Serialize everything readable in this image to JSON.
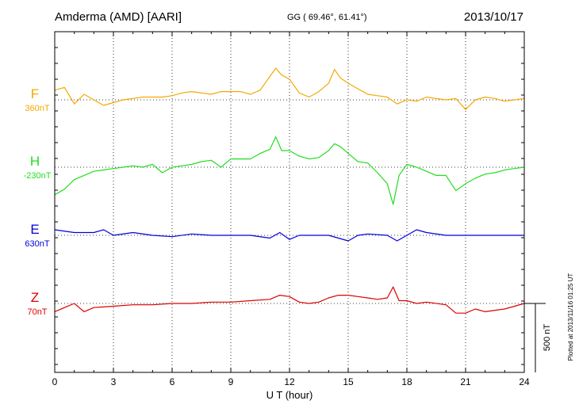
{
  "header": {
    "station": "Amderma (AMD)  [AARI]",
    "coords": "GG ( 69.46°,  61.41°)",
    "date": "2013/10/17"
  },
  "footer_note": "Plotted at 2013/11/16 01:25 UT",
  "scale_label": "500 nT",
  "chart_data": {
    "type": "line",
    "xlabel": "U T (hour)",
    "xlim": [
      0,
      24
    ],
    "x_ticks": [
      0,
      3,
      6,
      9,
      12,
      15,
      18,
      21,
      24
    ],
    "x_tick_labels": [
      "0",
      "3",
      "6",
      "9",
      "12",
      "15",
      "18",
      "21",
      "24"
    ],
    "scale_bar_nT": 500,
    "series": [
      {
        "name": "F",
        "baseline_label": "360nT",
        "color": "#f5a800",
        "x": [
          0,
          0.5,
          1,
          1.5,
          2,
          2.5,
          3,
          3.5,
          4,
          4.5,
          5,
          5.5,
          6,
          6.5,
          7,
          7.5,
          8,
          8.5,
          9,
          9.5,
          10,
          10.5,
          11,
          11.3,
          11.6,
          12,
          12.5,
          13,
          13.5,
          14,
          14.3,
          14.6,
          15,
          15.5,
          16,
          16.5,
          17,
          17.5,
          18,
          18.5,
          19,
          19.5,
          20,
          20.5,
          21,
          21.5,
          22,
          22.5,
          23,
          23.5,
          24
        ],
        "y": [
          70,
          90,
          -30,
          40,
          0,
          -40,
          -20,
          0,
          10,
          20,
          20,
          20,
          30,
          50,
          60,
          50,
          40,
          60,
          60,
          60,
          40,
          70,
          170,
          230,
          180,
          150,
          50,
          20,
          60,
          120,
          220,
          160,
          120,
          80,
          40,
          30,
          20,
          -30,
          0,
          -10,
          20,
          10,
          0,
          10,
          -70,
          0,
          20,
          10,
          -10,
          0,
          10
        ]
      },
      {
        "name": "H",
        "baseline_label": "-230nT",
        "color": "#22dd22",
        "x": [
          0,
          0.5,
          1,
          1.5,
          2,
          2.5,
          3,
          3.5,
          4,
          4.5,
          5,
          5.5,
          6,
          6.5,
          7,
          7.5,
          8,
          8.5,
          9,
          9.5,
          10,
          10.5,
          11,
          11.3,
          11.6,
          12,
          12.5,
          13,
          13.5,
          14,
          14.3,
          14.6,
          15,
          15.5,
          16,
          16.5,
          17,
          17.3,
          17.6,
          18,
          18.5,
          19,
          19.5,
          20,
          20.5,
          21,
          21.5,
          22,
          22.5,
          23,
          23.5,
          24
        ],
        "y": [
          -200,
          -160,
          -90,
          -60,
          -30,
          -20,
          -10,
          0,
          10,
          0,
          20,
          -40,
          0,
          10,
          20,
          40,
          50,
          0,
          60,
          60,
          60,
          100,
          130,
          220,
          120,
          120,
          80,
          60,
          70,
          120,
          170,
          150,
          100,
          40,
          30,
          -40,
          -120,
          -270,
          -60,
          20,
          0,
          -30,
          -60,
          -60,
          -170,
          -120,
          -80,
          -50,
          -40,
          -20,
          -10,
          0
        ]
      },
      {
        "name": "E",
        "baseline_label": "630nT",
        "color": "#0000dd",
        "x": [
          0,
          1,
          2,
          2.5,
          3,
          4,
          5,
          6,
          7,
          8,
          9,
          10,
          11,
          11.5,
          12,
          12.5,
          13,
          14,
          15,
          15.5,
          16,
          17,
          17.5,
          18,
          18.5,
          19,
          20,
          21,
          22,
          23,
          24
        ],
        "y": [
          40,
          20,
          20,
          40,
          0,
          20,
          0,
          -10,
          10,
          0,
          0,
          0,
          -20,
          20,
          -30,
          0,
          0,
          0,
          -40,
          0,
          10,
          0,
          -40,
          0,
          40,
          20,
          0,
          0,
          0,
          0,
          0
        ]
      },
      {
        "name": "Z",
        "baseline_label": "70nT",
        "color": "#dd0000",
        "x": [
          0,
          0.5,
          1,
          1.5,
          2,
          3,
          4,
          5,
          6,
          7,
          8,
          9,
          10,
          11,
          11.5,
          12,
          12.5,
          13,
          13.5,
          14,
          14.5,
          15,
          15.5,
          16,
          16.5,
          17,
          17.3,
          17.6,
          18,
          18.5,
          19,
          20,
          20.5,
          21,
          21.5,
          22,
          23,
          24
        ],
        "y": [
          -60,
          -30,
          0,
          -60,
          -30,
          -20,
          -10,
          -10,
          0,
          0,
          10,
          10,
          20,
          30,
          60,
          50,
          10,
          0,
          10,
          40,
          60,
          60,
          50,
          40,
          30,
          40,
          120,
          20,
          20,
          0,
          10,
          -10,
          -70,
          -70,
          -40,
          -60,
          -40,
          0
        ]
      }
    ]
  }
}
